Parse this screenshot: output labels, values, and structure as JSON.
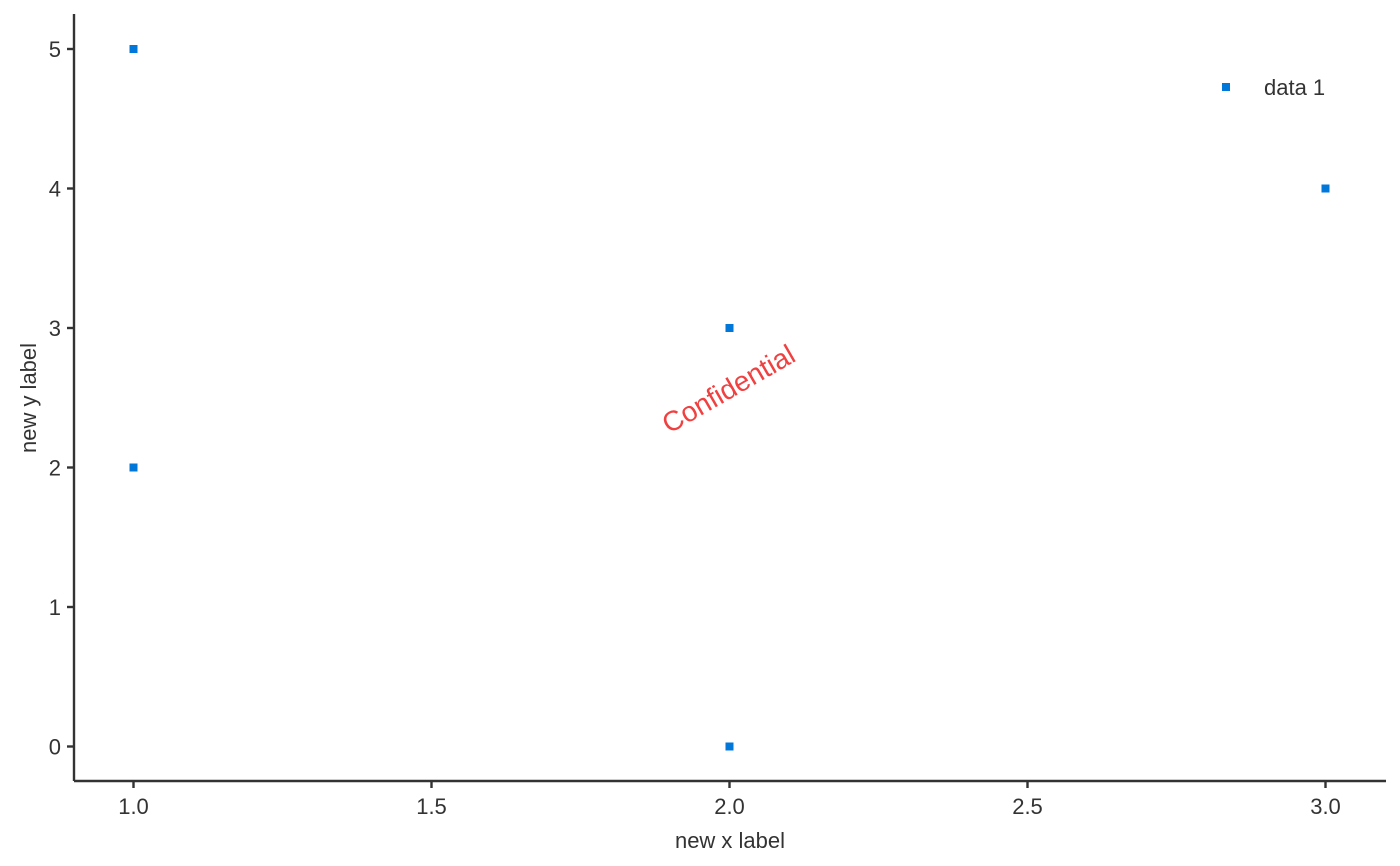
{
  "chart_data": {
    "type": "scatter",
    "title": "",
    "xlabel": "new x label",
    "ylabel": "new y label",
    "xlim": [
      0.9,
      3.1
    ],
    "ylim": [
      -0.25,
      5.25
    ],
    "x_ticks": [
      1.0,
      1.5,
      2.0,
      2.5,
      3.0
    ],
    "x_tick_labels": [
      "1.0",
      "1.5",
      "2.0",
      "2.5",
      "3.0"
    ],
    "y_ticks": [
      0,
      1,
      2,
      3,
      4,
      5
    ],
    "y_tick_labels": [
      "0",
      "1",
      "2",
      "3",
      "4",
      "5"
    ],
    "grid": false,
    "legend_position": "top-right",
    "series": [
      {
        "name": "data 1",
        "color": "#0077d9",
        "marker": "square",
        "points": [
          {
            "x": 1.0,
            "y": 5
          },
          {
            "x": 1.0,
            "y": 2
          },
          {
            "x": 2.0,
            "y": 3
          },
          {
            "x": 2.0,
            "y": 0
          },
          {
            "x": 3.0,
            "y": 4
          }
        ]
      }
    ],
    "annotations": [
      {
        "text": "Confidential",
        "x": 2.0,
        "y": 2.55,
        "color": "#f04040",
        "rotation": -30
      }
    ]
  }
}
